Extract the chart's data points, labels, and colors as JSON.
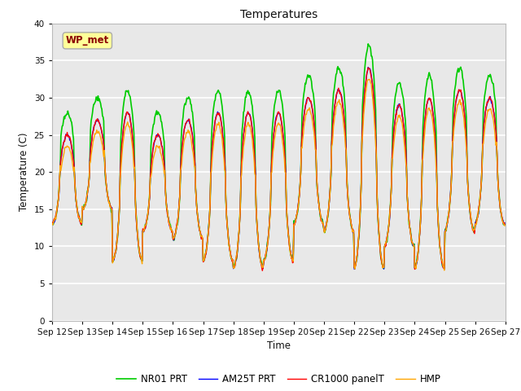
{
  "title": "Temperatures",
  "ylabel": "Temperature (C)",
  "xlabel": "Time",
  "annotation_text": "WP_met",
  "annotation_color": "#8B0000",
  "annotation_bg": "#FFFF99",
  "annotation_border": "#999900",
  "ylim": [
    0,
    40
  ],
  "yticks": [
    0,
    5,
    10,
    15,
    20,
    25,
    30,
    35,
    40
  ],
  "xtick_labels": [
    "Sep 12",
    "Sep 13",
    "Sep 14",
    "Sep 15",
    "Sep 16",
    "Sep 17",
    "Sep 18",
    "Sep 19",
    "Sep 20",
    "Sep 21",
    "Sep 22",
    "Sep 23",
    "Sep 24",
    "Sep 25",
    "Sep 26",
    "Sep 27"
  ],
  "series": [
    {
      "label": "CR1000 panelT",
      "color": "#FF0000",
      "lw": 1.0
    },
    {
      "label": "HMP",
      "color": "#FFA500",
      "lw": 1.0
    },
    {
      "label": "NR01 PRT",
      "color": "#00CC00",
      "lw": 1.2
    },
    {
      "label": "AM25T PRT",
      "color": "#0000FF",
      "lw": 1.0
    }
  ],
  "bg_color": "#E8E8E8",
  "grid_color": "#FFFFFF",
  "fig_bg": "#FFFFFF"
}
